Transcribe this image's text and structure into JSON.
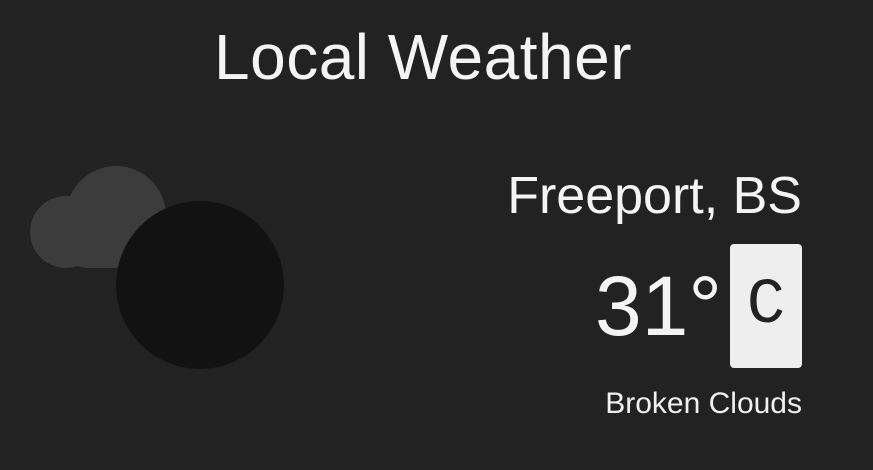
{
  "header": {
    "title": "Local Weather"
  },
  "weather": {
    "location": "Freeport, BS",
    "temperature": "31°",
    "unit": "C",
    "description": "Broken Clouds",
    "icon": "broken-clouds-icon"
  },
  "colors": {
    "background": "#222222",
    "text": "#f4f4f4",
    "cloud": "#3c3c3c",
    "dark_circle": "#121212",
    "unit_button_bg": "#eeeeee",
    "unit_button_text": "#222222"
  }
}
